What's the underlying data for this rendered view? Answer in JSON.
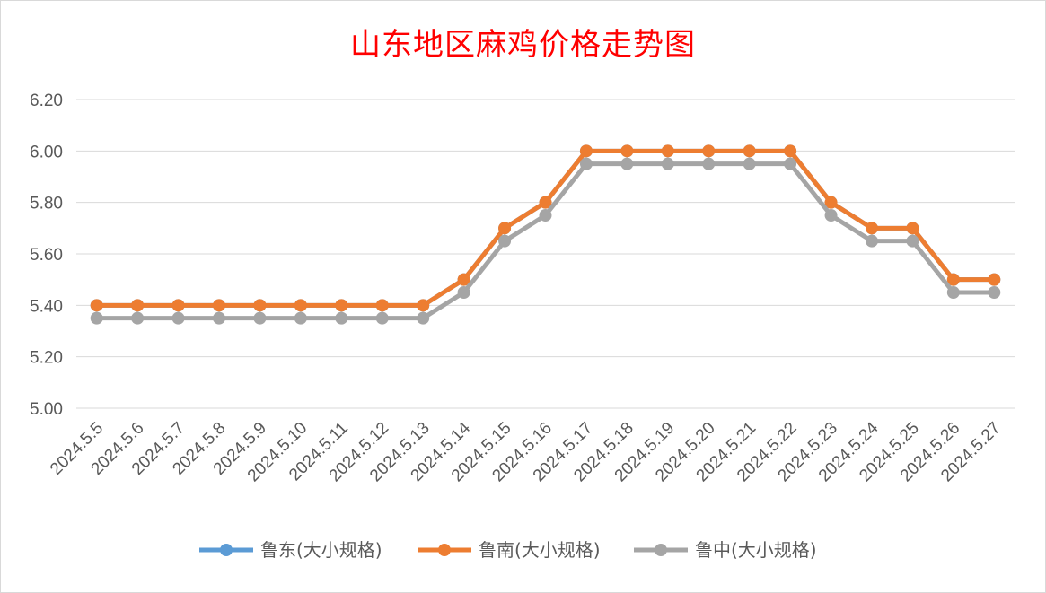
{
  "chart_data": {
    "type": "line",
    "title": "山东地区麻鸡价格走势图",
    "categories": [
      "2024.5.5",
      "2024.5.6",
      "2024.5.7",
      "2024.5.8",
      "2024.5.9",
      "2024.5.10",
      "2024.5.11",
      "2024.5.12",
      "2024.5.13",
      "2024.5.14",
      "2024.5.15",
      "2024.5.16",
      "2024.5.17",
      "2024.5.18",
      "2024.5.19",
      "2024.5.20",
      "2024.5.21",
      "2024.5.22",
      "2024.5.23",
      "2024.5.24",
      "2024.5.25",
      "2024.5.26",
      "2024.5.27"
    ],
    "ylim": [
      5.0,
      6.2
    ],
    "yticks": [
      "5.00",
      "5.20",
      "5.40",
      "5.60",
      "5.80",
      "6.00",
      "6.20"
    ],
    "grid": true,
    "legend_position": "bottom",
    "series": [
      {
        "name": "鲁东(大小规格)",
        "color": "#5b9bd5",
        "values": [
          5.4,
          5.4,
          5.4,
          5.4,
          5.4,
          5.4,
          5.4,
          5.4,
          5.4,
          5.5,
          5.7,
          5.8,
          6.0,
          6.0,
          6.0,
          6.0,
          6.0,
          6.0,
          5.8,
          5.7,
          5.7,
          5.5,
          5.5
        ]
      },
      {
        "name": "鲁南(大小规格)",
        "color": "#ed7d31",
        "values": [
          5.4,
          5.4,
          5.4,
          5.4,
          5.4,
          5.4,
          5.4,
          5.4,
          5.4,
          5.5,
          5.7,
          5.8,
          6.0,
          6.0,
          6.0,
          6.0,
          6.0,
          6.0,
          5.8,
          5.7,
          5.7,
          5.5,
          5.5
        ]
      },
      {
        "name": "鲁中(大小规格)",
        "color": "#a5a5a5",
        "values": [
          5.35,
          5.35,
          5.35,
          5.35,
          5.35,
          5.35,
          5.35,
          5.35,
          5.35,
          5.45,
          5.65,
          5.75,
          5.95,
          5.95,
          5.95,
          5.95,
          5.95,
          5.95,
          5.75,
          5.65,
          5.65,
          5.45,
          5.45
        ]
      }
    ]
  }
}
